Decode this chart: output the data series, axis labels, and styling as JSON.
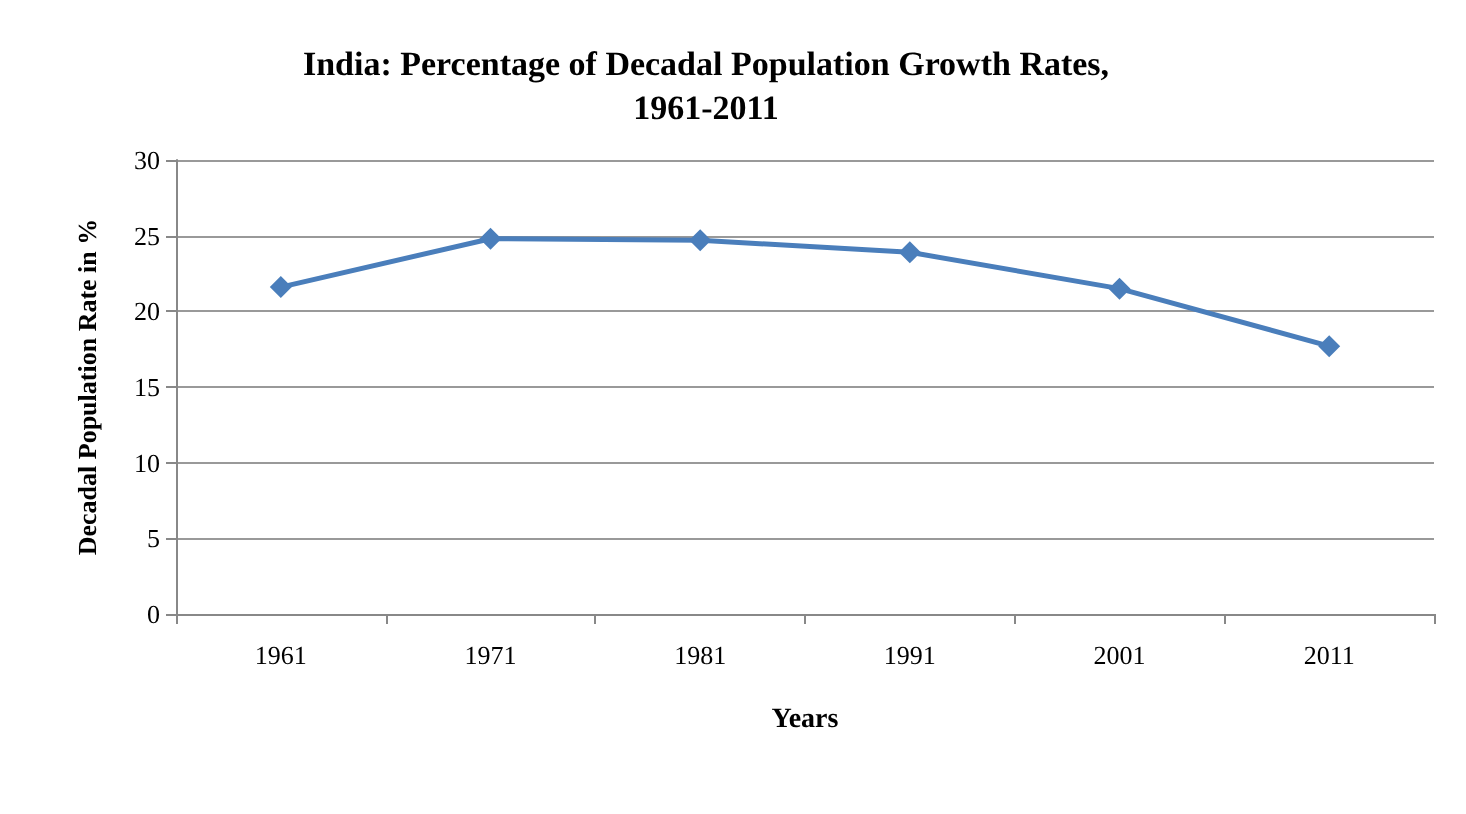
{
  "chart_data": {
    "type": "line",
    "title": "India: Percentage of Decadal Population Growth Rates,\n1961-2011",
    "xlabel": "Years",
    "ylabel": "Decadal Population Rate in %",
    "categories": [
      "1961",
      "1971",
      "1981",
      "1991",
      "2001",
      "2011"
    ],
    "series": [
      {
        "color": "#4a7ebb",
        "values": [
          21.6,
          24.8,
          24.7,
          23.9,
          21.5,
          17.7
        ]
      }
    ],
    "ylim": [
      0,
      30
    ],
    "yticks": [
      0,
      5,
      10,
      15,
      20,
      25,
      30
    ],
    "grid": "y",
    "marker": "diamond",
    "line_style": "solid"
  }
}
